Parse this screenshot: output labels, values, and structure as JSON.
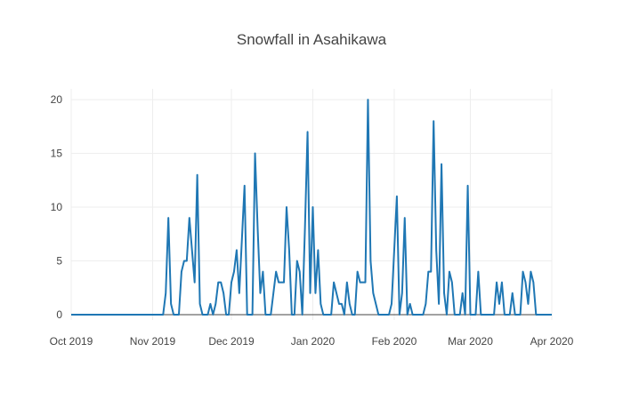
{
  "chart_data": {
    "type": "line",
    "title": "Snowfall in Asahikawa",
    "xlabel": "",
    "ylabel": "",
    "x_start": "2019-10-01",
    "x_end": "2020-04-01",
    "x_ticks": [
      {
        "date": "2019-10-01",
        "label": "Oct 2019"
      },
      {
        "date": "2019-11-01",
        "label": "Nov 2019"
      },
      {
        "date": "2019-12-01",
        "label": "Dec 2019"
      },
      {
        "date": "2020-01-01",
        "label": "Jan 2020"
      },
      {
        "date": "2020-02-01",
        "label": "Feb 2020"
      },
      {
        "date": "2020-03-01",
        "label": "Mar 2020"
      },
      {
        "date": "2020-04-01",
        "label": "Apr 2020"
      }
    ],
    "y_ticks": [
      0,
      5,
      10,
      15,
      20
    ],
    "ylim": [
      -0.5,
      21
    ],
    "grid": true,
    "legend": "none",
    "line_color": "#1f77b4",
    "series": [
      {
        "points": [
          [
            "2019-10-01",
            0
          ],
          [
            "2019-11-05",
            0
          ],
          [
            "2019-11-06",
            2
          ],
          [
            "2019-11-07",
            9
          ],
          [
            "2019-11-08",
            1
          ],
          [
            "2019-11-09",
            0
          ],
          [
            "2019-11-11",
            0
          ],
          [
            "2019-11-12",
            4
          ],
          [
            "2019-11-13",
            5
          ],
          [
            "2019-11-14",
            5
          ],
          [
            "2019-11-15",
            9
          ],
          [
            "2019-11-17",
            3
          ],
          [
            "2019-11-18",
            13
          ],
          [
            "2019-11-19",
            1
          ],
          [
            "2019-11-20",
            0
          ],
          [
            "2019-11-21",
            0
          ],
          [
            "2019-11-22",
            0
          ],
          [
            "2019-11-23",
            1
          ],
          [
            "2019-11-24",
            0
          ],
          [
            "2019-11-25",
            1
          ],
          [
            "2019-11-26",
            3
          ],
          [
            "2019-11-27",
            3
          ],
          [
            "2019-11-28",
            2
          ],
          [
            "2019-11-29",
            0
          ],
          [
            "2019-11-30",
            0
          ],
          [
            "2019-12-01",
            3
          ],
          [
            "2019-12-02",
            4
          ],
          [
            "2019-12-03",
            6
          ],
          [
            "2019-12-04",
            2
          ],
          [
            "2019-12-06",
            12
          ],
          [
            "2019-12-07",
            0
          ],
          [
            "2019-12-09",
            0
          ],
          [
            "2019-12-10",
            15
          ],
          [
            "2019-12-11",
            8
          ],
          [
            "2019-12-12",
            2
          ],
          [
            "2019-12-13",
            4
          ],
          [
            "2019-12-14",
            0
          ],
          [
            "2019-12-16",
            0
          ],
          [
            "2019-12-17",
            2
          ],
          [
            "2019-12-18",
            4
          ],
          [
            "2019-12-19",
            3
          ],
          [
            "2019-12-20",
            3
          ],
          [
            "2019-12-21",
            3
          ],
          [
            "2019-12-22",
            10
          ],
          [
            "2019-12-23",
            6
          ],
          [
            "2019-12-24",
            0
          ],
          [
            "2019-12-25",
            0
          ],
          [
            "2019-12-26",
            5
          ],
          [
            "2019-12-27",
            4
          ],
          [
            "2019-12-28",
            0
          ],
          [
            "2019-12-29",
            8
          ],
          [
            "2019-12-30",
            17
          ],
          [
            "2019-12-31",
            2
          ],
          [
            "2020-01-01",
            10
          ],
          [
            "2020-01-02",
            2
          ],
          [
            "2020-01-03",
            6
          ],
          [
            "2020-01-04",
            1
          ],
          [
            "2020-01-05",
            0
          ],
          [
            "2020-01-06",
            0
          ],
          [
            "2020-01-07",
            0
          ],
          [
            "2020-01-08",
            0
          ],
          [
            "2020-01-09",
            3
          ],
          [
            "2020-01-10",
            2
          ],
          [
            "2020-01-11",
            1
          ],
          [
            "2020-01-12",
            1
          ],
          [
            "2020-01-13",
            0
          ],
          [
            "2020-01-14",
            3
          ],
          [
            "2020-01-15",
            1
          ],
          [
            "2020-01-16",
            0
          ],
          [
            "2020-01-17",
            0
          ],
          [
            "2020-01-18",
            4
          ],
          [
            "2020-01-19",
            3
          ],
          [
            "2020-01-20",
            3
          ],
          [
            "2020-01-21",
            3
          ],
          [
            "2020-01-22",
            20
          ],
          [
            "2020-01-23",
            5
          ],
          [
            "2020-01-24",
            2
          ],
          [
            "2020-01-25",
            1
          ],
          [
            "2020-01-26",
            0
          ],
          [
            "2020-01-27",
            0
          ],
          [
            "2020-01-28",
            0
          ],
          [
            "2020-01-29",
            0
          ],
          [
            "2020-01-30",
            0
          ],
          [
            "2020-01-31",
            1
          ],
          [
            "2020-02-01",
            6
          ],
          [
            "2020-02-02",
            11
          ],
          [
            "2020-02-03",
            0
          ],
          [
            "2020-02-04",
            2
          ],
          [
            "2020-02-05",
            9
          ],
          [
            "2020-02-06",
            0
          ],
          [
            "2020-02-07",
            1
          ],
          [
            "2020-02-08",
            0
          ],
          [
            "2020-02-09",
            0
          ],
          [
            "2020-02-10",
            0
          ],
          [
            "2020-02-11",
            0
          ],
          [
            "2020-02-12",
            0
          ],
          [
            "2020-02-13",
            1
          ],
          [
            "2020-02-14",
            4
          ],
          [
            "2020-02-15",
            4
          ],
          [
            "2020-02-16",
            18
          ],
          [
            "2020-02-17",
            6
          ],
          [
            "2020-02-18",
            1
          ],
          [
            "2020-02-19",
            14
          ],
          [
            "2020-02-20",
            2
          ],
          [
            "2020-02-21",
            0
          ],
          [
            "2020-02-22",
            4
          ],
          [
            "2020-02-23",
            3
          ],
          [
            "2020-02-24",
            0
          ],
          [
            "2020-02-25",
            0
          ],
          [
            "2020-02-26",
            0
          ],
          [
            "2020-02-27",
            2
          ],
          [
            "2020-02-28",
            0
          ],
          [
            "2020-02-29",
            12
          ],
          [
            "2020-03-01",
            0
          ],
          [
            "2020-03-02",
            0
          ],
          [
            "2020-03-03",
            0
          ],
          [
            "2020-03-04",
            4
          ],
          [
            "2020-03-05",
            0
          ],
          [
            "2020-03-06",
            0
          ],
          [
            "2020-03-07",
            0
          ],
          [
            "2020-03-08",
            0
          ],
          [
            "2020-03-09",
            0
          ],
          [
            "2020-03-10",
            0
          ],
          [
            "2020-03-11",
            3
          ],
          [
            "2020-03-12",
            1
          ],
          [
            "2020-03-13",
            3
          ],
          [
            "2020-03-14",
            0
          ],
          [
            "2020-03-15",
            0
          ],
          [
            "2020-03-16",
            0
          ],
          [
            "2020-03-17",
            2
          ],
          [
            "2020-03-18",
            0
          ],
          [
            "2020-03-19",
            0
          ],
          [
            "2020-03-20",
            0
          ],
          [
            "2020-03-21",
            4
          ],
          [
            "2020-03-22",
            3
          ],
          [
            "2020-03-23",
            1
          ],
          [
            "2020-03-24",
            4
          ],
          [
            "2020-03-25",
            3
          ],
          [
            "2020-03-26",
            0
          ],
          [
            "2020-04-01",
            0
          ]
        ]
      }
    ]
  }
}
